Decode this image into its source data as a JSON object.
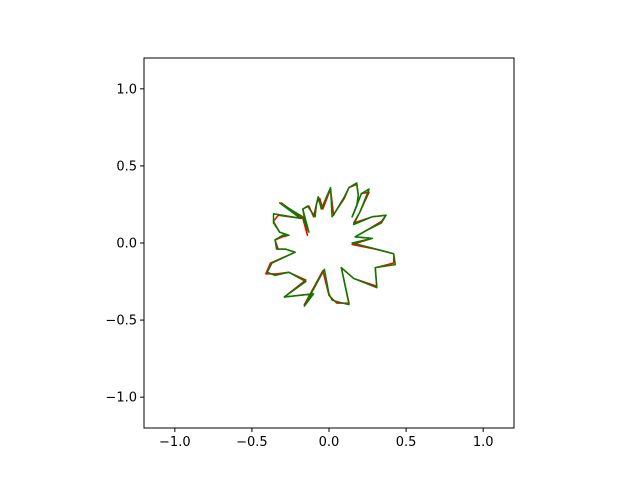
{
  "chart_data": {
    "type": "line",
    "title": "",
    "xlabel": "",
    "ylabel": "",
    "xlim": [
      -1.2,
      1.2
    ],
    "ylim": [
      -1.2,
      1.2
    ],
    "grid": false,
    "aspect": "equal",
    "xticks": [
      -1.0,
      -0.5,
      0.0,
      0.5,
      1.0
    ],
    "xtick_labels": [
      "−1.0",
      "−0.5",
      "0.0",
      "0.5",
      "1.0"
    ],
    "yticks": [
      1.0,
      0.5,
      0.0,
      -0.5,
      -1.0
    ],
    "ytick_labels": [
      "1.0",
      "0.5",
      "0.0",
      "−0.5",
      "−1.0"
    ],
    "series": [
      {
        "color": "#ff0000",
        "closed": true,
        "points": [
          [
            0.42,
            -0.07
          ],
          [
            0.42,
            -0.13
          ],
          [
            0.3,
            -0.16
          ],
          [
            0.31,
            -0.28
          ],
          [
            0.16,
            -0.23
          ],
          [
            0.08,
            -0.16
          ],
          [
            0.13,
            -0.39
          ],
          [
            0.1,
            -0.39
          ],
          [
            0.05,
            -0.39
          ],
          [
            0.04,
            -0.38
          ],
          [
            0.0,
            -0.34
          ],
          [
            -0.04,
            -0.18
          ],
          [
            -0.16,
            -0.4
          ],
          [
            -0.11,
            -0.33
          ],
          [
            -0.29,
            -0.35
          ],
          [
            -0.15,
            -0.24
          ],
          [
            -0.26,
            -0.19
          ],
          [
            -0.34,
            -0.2
          ],
          [
            -0.41,
            -0.2
          ],
          [
            -0.38,
            -0.13
          ],
          [
            -0.22,
            -0.06
          ],
          [
            -0.28,
            -0.04
          ],
          [
            -0.33,
            -0.04
          ],
          [
            -0.35,
            0.02
          ],
          [
            -0.3,
            0.04
          ],
          [
            -0.26,
            0.05
          ],
          [
            -0.32,
            0.07
          ],
          [
            -0.36,
            0.14
          ],
          [
            -0.33,
            0.18
          ],
          [
            -0.18,
            0.16
          ],
          [
            -0.2,
            0.18
          ],
          [
            -0.31,
            0.26
          ],
          [
            -0.17,
            0.16
          ],
          [
            -0.14,
            0.05
          ],
          [
            -0.17,
            0.22
          ],
          [
            -0.13,
            0.24
          ],
          [
            -0.1,
            0.17
          ],
          [
            -0.08,
            0.26
          ],
          [
            -0.06,
            0.29
          ],
          [
            -0.04,
            0.22
          ],
          [
            0.01,
            0.35
          ],
          [
            0.03,
            0.18
          ],
          [
            0.04,
            0.2
          ],
          [
            0.1,
            0.29
          ],
          [
            0.13,
            0.36
          ],
          [
            0.18,
            0.38
          ],
          [
            0.19,
            0.31
          ],
          [
            0.18,
            0.24
          ],
          [
            0.15,
            0.17
          ],
          [
            0.21,
            0.32
          ],
          [
            0.26,
            0.33
          ],
          [
            0.2,
            0.2
          ],
          [
            0.16,
            0.13
          ],
          [
            0.28,
            0.17
          ],
          [
            0.37,
            0.18
          ],
          [
            0.34,
            0.14
          ],
          [
            0.24,
            0.08
          ],
          [
            0.17,
            0.04
          ],
          [
            0.28,
            0.03
          ],
          [
            0.15,
            -0.01
          ],
          [
            0.3,
            -0.04
          ]
        ]
      },
      {
        "color": "#008000",
        "closed": true,
        "points": [
          [
            0.42,
            -0.07
          ],
          [
            0.43,
            -0.14
          ],
          [
            0.3,
            -0.16
          ],
          [
            0.31,
            -0.29
          ],
          [
            0.16,
            -0.23
          ],
          [
            0.08,
            -0.16
          ],
          [
            0.13,
            -0.4
          ],
          [
            0.09,
            -0.39
          ],
          [
            0.05,
            -0.38
          ],
          [
            0.02,
            -0.37
          ],
          [
            0.0,
            -0.33
          ],
          [
            -0.03,
            -0.17
          ],
          [
            -0.16,
            -0.41
          ],
          [
            -0.1,
            -0.33
          ],
          [
            -0.29,
            -0.35
          ],
          [
            -0.15,
            -0.25
          ],
          [
            -0.26,
            -0.19
          ],
          [
            -0.35,
            -0.21
          ],
          [
            -0.4,
            -0.19
          ],
          [
            -0.37,
            -0.13
          ],
          [
            -0.22,
            -0.06
          ],
          [
            -0.28,
            -0.04
          ],
          [
            -0.34,
            -0.04
          ],
          [
            -0.35,
            0.02
          ],
          [
            -0.3,
            0.05
          ],
          [
            -0.26,
            0.05
          ],
          [
            -0.32,
            0.07
          ],
          [
            -0.36,
            0.13
          ],
          [
            -0.36,
            0.19
          ],
          [
            -0.18,
            0.16
          ],
          [
            -0.2,
            0.17
          ],
          [
            -0.32,
            0.26
          ],
          [
            -0.17,
            0.17
          ],
          [
            -0.13,
            0.07
          ],
          [
            -0.17,
            0.22
          ],
          [
            -0.14,
            0.24
          ],
          [
            -0.09,
            0.17
          ],
          [
            -0.08,
            0.26
          ],
          [
            -0.07,
            0.3
          ],
          [
            -0.05,
            0.22
          ],
          [
            0.01,
            0.36
          ],
          [
            0.02,
            0.17
          ],
          [
            0.04,
            0.2
          ],
          [
            0.1,
            0.3
          ],
          [
            0.13,
            0.36
          ],
          [
            0.18,
            0.39
          ],
          [
            0.19,
            0.31
          ],
          [
            0.18,
            0.24
          ],
          [
            0.15,
            0.17
          ],
          [
            0.21,
            0.32
          ],
          [
            0.26,
            0.35
          ],
          [
            0.2,
            0.2
          ],
          [
            0.16,
            0.12
          ],
          [
            0.28,
            0.17
          ],
          [
            0.37,
            0.18
          ],
          [
            0.34,
            0.13
          ],
          [
            0.24,
            0.08
          ],
          [
            0.17,
            0.04
          ],
          [
            0.28,
            0.03
          ],
          [
            0.15,
            0.0
          ],
          [
            0.31,
            -0.04
          ]
        ]
      }
    ]
  }
}
